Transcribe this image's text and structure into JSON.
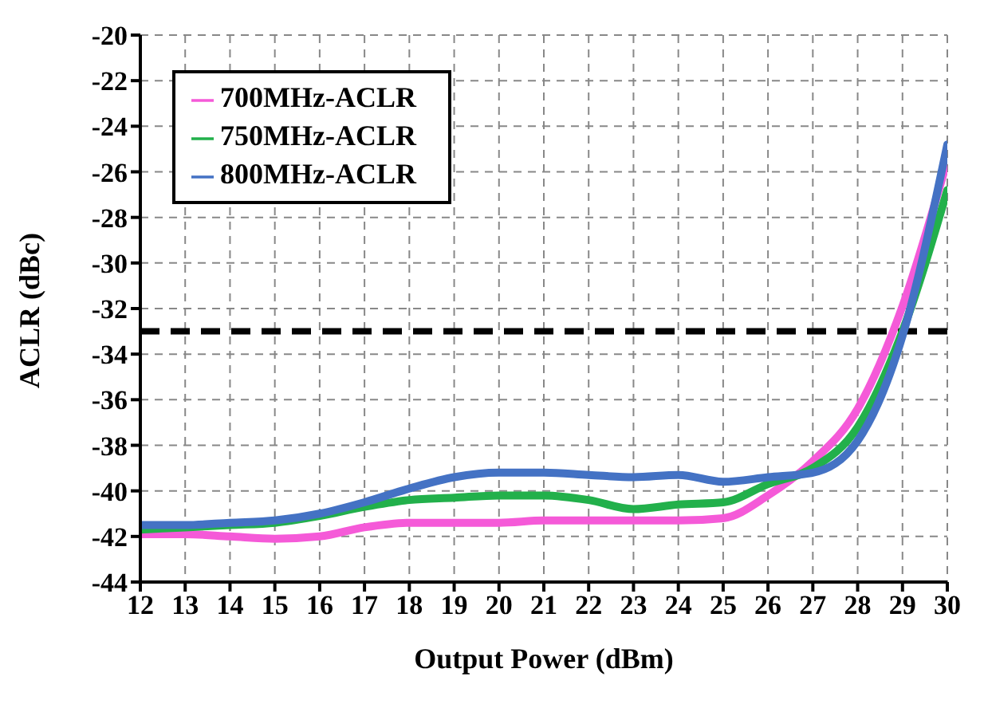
{
  "chart_data": {
    "type": "line",
    "xlabel": "Output Power (dBm)",
    "ylabel": "ACLR (dBc)",
    "x": [
      12,
      13,
      14,
      15,
      16,
      17,
      18,
      19,
      20,
      21,
      22,
      23,
      24,
      25,
      26,
      27,
      28,
      29,
      30
    ],
    "series": [
      {
        "name": "700MHz-ACLR",
        "color": "#f55ad8",
        "values": [
          -41.9,
          -41.9,
          -42,
          -42.1,
          -42,
          -41.6,
          -41.4,
          -41.4,
          -41.4,
          -41.3,
          -41.3,
          -41.3,
          -41.3,
          -41.2,
          -40.2,
          -38.7,
          -36.4,
          -31.9,
          -25.5
        ]
      },
      {
        "name": "750MHz-ACLR",
        "color": "#22b04b",
        "values": [
          -41.7,
          -41.6,
          -41.5,
          -41.4,
          -41.1,
          -40.7,
          -40.4,
          -40.3,
          -40.2,
          -40.2,
          -40.4,
          -40.8,
          -40.6,
          -40.5,
          -39.7,
          -39,
          -37.2,
          -33,
          -26.8
        ]
      },
      {
        "name": "800MHz-ACLR",
        "color": "#4472c4",
        "values": [
          -41.5,
          -41.5,
          -41.4,
          -41.3,
          -41,
          -40.5,
          -39.9,
          -39.4,
          -39.2,
          -39.2,
          -39.3,
          -39.4,
          -39.3,
          -39.6,
          -39.4,
          -39.2,
          -37.8,
          -33.2,
          -24.8
        ]
      }
    ],
    "xlim": [
      12,
      30
    ],
    "xticks": [
      12,
      13,
      14,
      15,
      16,
      17,
      18,
      19,
      20,
      21,
      22,
      23,
      24,
      25,
      26,
      27,
      28,
      29,
      30
    ],
    "ylim": [
      -44,
      -20
    ],
    "yticks": [
      -44,
      -42,
      -40,
      -38,
      -36,
      -34,
      -32,
      -30,
      -28,
      -26,
      -24,
      -22,
      -20
    ],
    "ref_lines": [
      {
        "axis": "y",
        "value": -33,
        "color": "#000000",
        "line_style": "dashed"
      }
    ],
    "grid": true,
    "legend": "top left",
    "marker": "none",
    "line_style": "solid"
  }
}
